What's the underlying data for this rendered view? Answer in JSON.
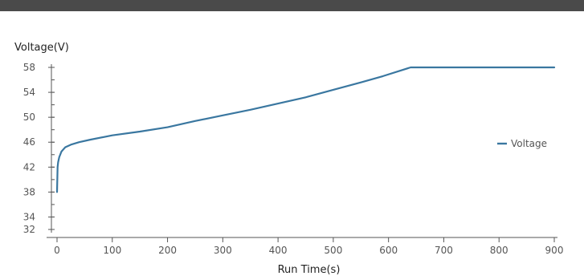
{
  "chart_data": {
    "type": "line",
    "title": "",
    "ylabel": "Voltage(V)",
    "xlabel": "Run Time(s)",
    "xlim": [
      0,
      900
    ],
    "ylim": [
      32,
      58
    ],
    "xticks": [
      0,
      100,
      200,
      300,
      400,
      500,
      600,
      700,
      800,
      900
    ],
    "yticks": [
      32,
      34,
      38,
      42,
      46,
      50,
      54,
      58
    ],
    "yticks_all": [
      32,
      34,
      36,
      38,
      40,
      42,
      44,
      46,
      48,
      50,
      52,
      54,
      56,
      58
    ],
    "grid": false,
    "legend_position": "right",
    "series": [
      {
        "name": "Voltage",
        "color": "#3a77a0",
        "x": [
          0,
          1,
          2,
          4,
          8,
          15,
          25,
          40,
          60,
          100,
          150,
          200,
          250,
          300,
          350,
          400,
          450,
          500,
          550,
          590,
          640,
          700,
          800,
          900
        ],
        "y": [
          38,
          42,
          42.8,
          43.6,
          44.5,
          45.2,
          45.6,
          46,
          46.4,
          47.1,
          47.7,
          48.4,
          49.4,
          50.3,
          51.2,
          52.2,
          53.2,
          54.4,
          55.6,
          56.6,
          58,
          58,
          58,
          58
        ]
      }
    ]
  }
}
